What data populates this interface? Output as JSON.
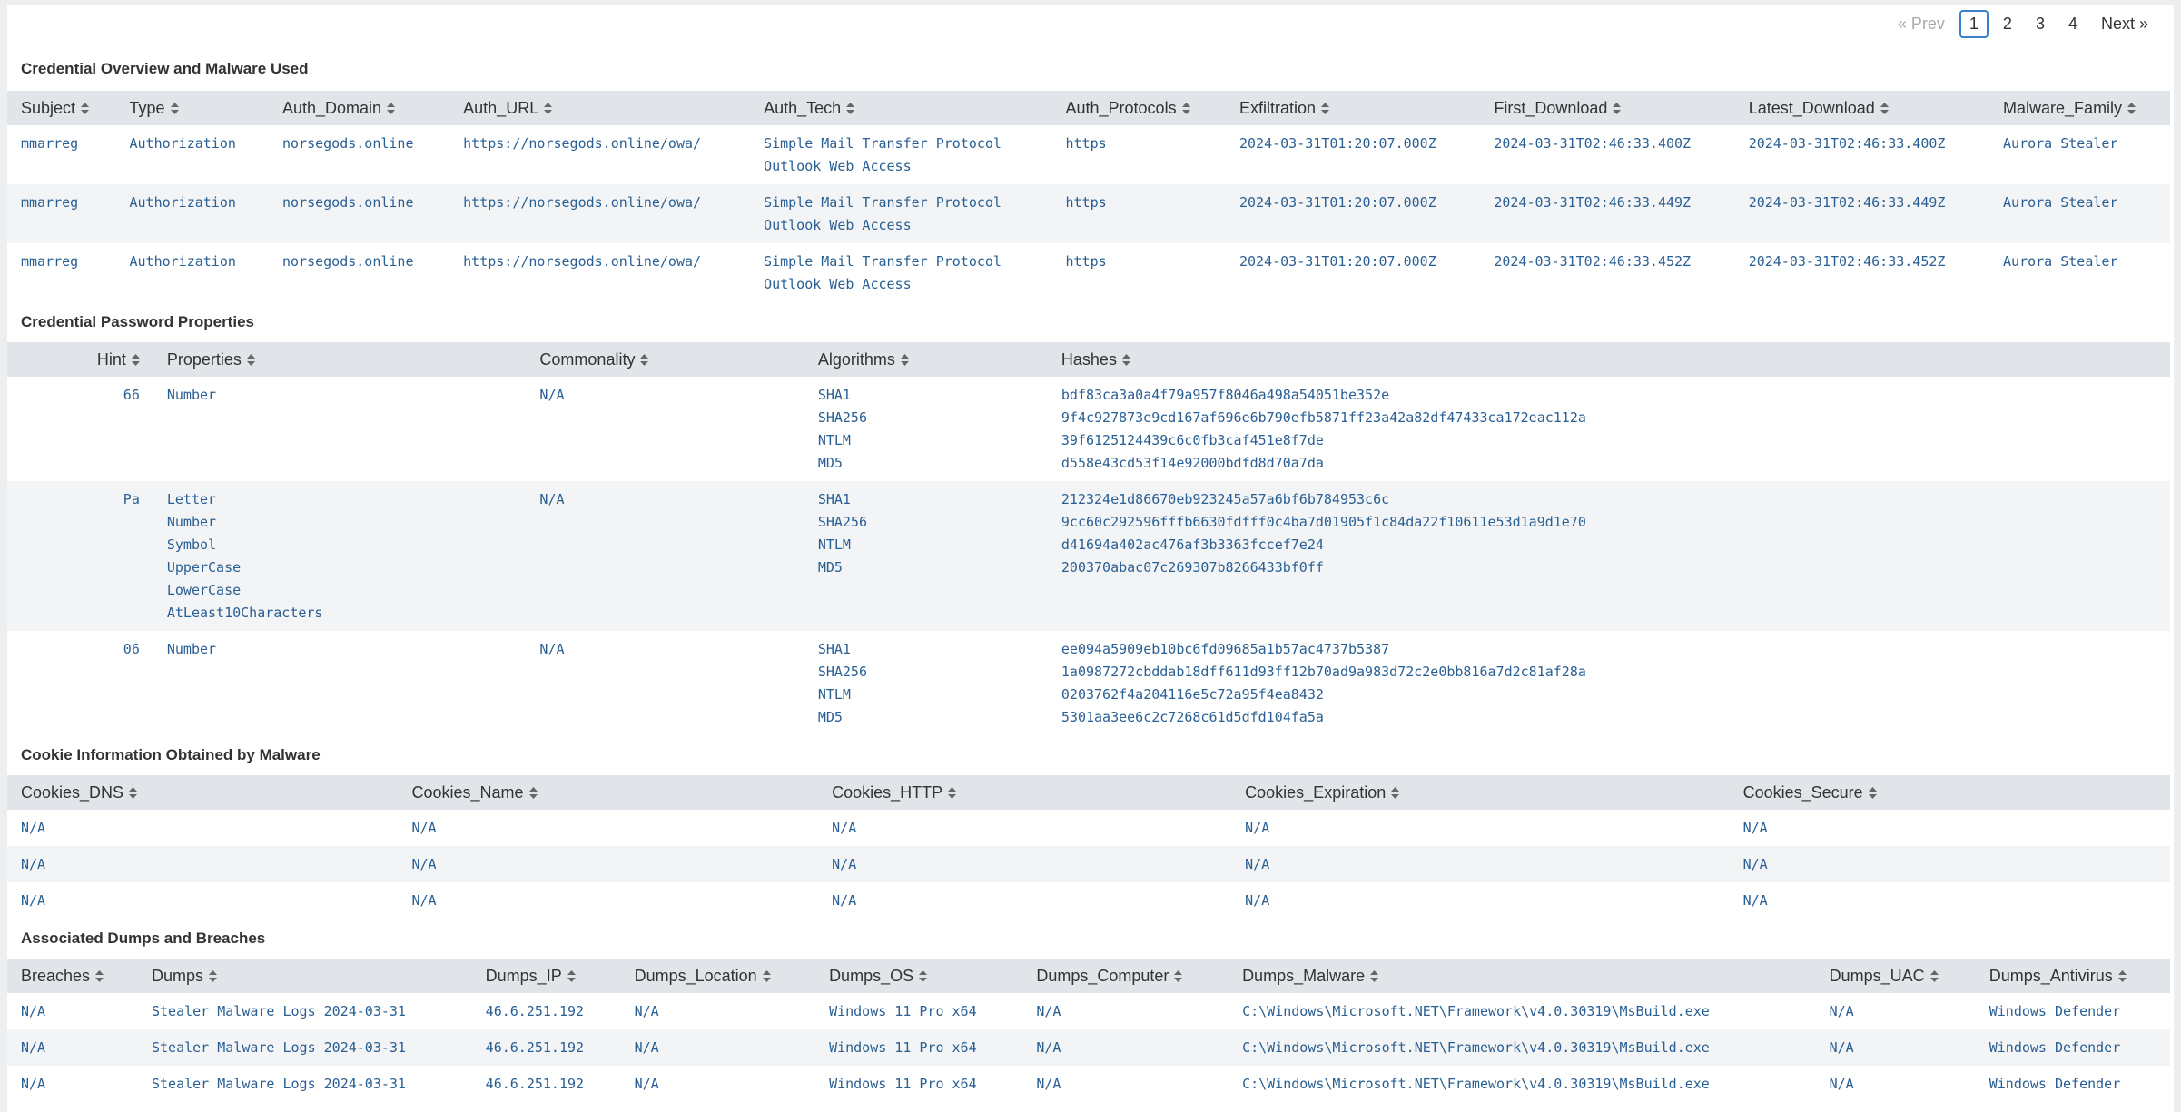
{
  "pagination": {
    "prev": "« Prev",
    "pages": [
      "1",
      "2",
      "3",
      "4"
    ],
    "current": "1",
    "next": "Next »"
  },
  "sections": [
    {
      "title": "Credential Overview and Malware Used",
      "columns": [
        "Subject",
        "Type",
        "Auth_Domain",
        "Auth_URL",
        "Auth_Tech",
        "Auth_Protocols",
        "Exfiltration",
        "First_Download",
        "Latest_Download",
        "Malware_Family"
      ],
      "rows": [
        [
          "mmarreg",
          "Authorization",
          "norsegods.online",
          "https://norsegods.online/owa/",
          [
            "Simple Mail Transfer Protocol",
            "Outlook Web Access"
          ],
          "https",
          "2024-03-31T01:20:07.000Z",
          "2024-03-31T02:46:33.400Z",
          "2024-03-31T02:46:33.400Z",
          "Aurora Stealer"
        ],
        [
          "mmarreg",
          "Authorization",
          "norsegods.online",
          "https://norsegods.online/owa/",
          [
            "Simple Mail Transfer Protocol",
            "Outlook Web Access"
          ],
          "https",
          "2024-03-31T01:20:07.000Z",
          "2024-03-31T02:46:33.449Z",
          "2024-03-31T02:46:33.449Z",
          "Aurora Stealer"
        ],
        [
          "mmarreg",
          "Authorization",
          "norsegods.online",
          "https://norsegods.online/owa/",
          [
            "Simple Mail Transfer Protocol",
            "Outlook Web Access"
          ],
          "https",
          "2024-03-31T01:20:07.000Z",
          "2024-03-31T02:46:33.452Z",
          "2024-03-31T02:46:33.452Z",
          "Aurora Stealer"
        ]
      ]
    },
    {
      "title": "Credential Password Properties",
      "columns": [
        "Hint",
        "Properties",
        "Commonality",
        "Algorithms",
        "Hashes"
      ],
      "rows": [
        [
          "66",
          [
            "Number"
          ],
          "N/A",
          [
            "SHA1",
            "SHA256",
            "NTLM",
            "MD5"
          ],
          [
            "bdf83ca3a0a4f79a957f8046a498a54051be352e",
            "9f4c927873e9cd167af696e6b790efb5871ff23a42a82df47433ca172eac112a",
            "39f6125124439c6c0fb3caf451e8f7de",
            "d558e43cd53f14e92000bdfd8d70a7da"
          ]
        ],
        [
          "Pa",
          [
            "Letter",
            "Number",
            "Symbol",
            "UpperCase",
            "LowerCase",
            "AtLeast10Characters"
          ],
          "N/A",
          [
            "SHA1",
            "SHA256",
            "NTLM",
            "MD5"
          ],
          [
            "212324e1d86670eb923245a57a6bf6b784953c6c",
            "9cc60c292596fffb6630fdfff0c4ba7d01905f1c84da22f10611e53d1a9d1e70",
            "d41694a402ac476af3b3363fccef7e24",
            "200370abac07c269307b8266433bf0ff"
          ]
        ],
        [
          "06",
          [
            "Number"
          ],
          "N/A",
          [
            "SHA1",
            "SHA256",
            "NTLM",
            "MD5"
          ],
          [
            "ee094a5909eb10bc6fd09685a1b57ac4737b5387",
            "1a0987272cbddab18dff611d93ff12b70ad9a983d72c2e0bb816a7d2c81af28a",
            "0203762f4a204116e5c72a95f4ea8432",
            "5301aa3ee6c2c7268c61d5dfd104fa5a"
          ]
        ]
      ]
    },
    {
      "title": "Cookie Information Obtained by Malware",
      "columns": [
        "Cookies_DNS",
        "Cookies_Name",
        "Cookies_HTTP",
        "Cookies_Expiration",
        "Cookies_Secure"
      ],
      "rows": [
        [
          "N/A",
          "N/A",
          "N/A",
          "N/A",
          "N/A"
        ],
        [
          "N/A",
          "N/A",
          "N/A",
          "N/A",
          "N/A"
        ],
        [
          "N/A",
          "N/A",
          "N/A",
          "N/A",
          "N/A"
        ]
      ]
    },
    {
      "title": "Associated Dumps and Breaches",
      "columns": [
        "Breaches",
        "Dumps",
        "Dumps_IP",
        "Dumps_Location",
        "Dumps_OS",
        "Dumps_Computer",
        "Dumps_Malware",
        "Dumps_UAC",
        "Dumps_Antivirus"
      ],
      "rows": [
        [
          "N/A",
          "Stealer Malware Logs 2024-03-31",
          "46.6.251.192",
          "N/A",
          "Windows 11 Pro x64",
          "N/A",
          "C:\\Windows\\Microsoft.NET\\Framework\\v4.0.30319\\MsBuild.exe",
          "N/A",
          "Windows Defender"
        ],
        [
          "N/A",
          "Stealer Malware Logs 2024-03-31",
          "46.6.251.192",
          "N/A",
          "Windows 11 Pro x64",
          "N/A",
          "C:\\Windows\\Microsoft.NET\\Framework\\v4.0.30319\\MsBuild.exe",
          "N/A",
          "Windows Defender"
        ],
        [
          "N/A",
          "Stealer Malware Logs 2024-03-31",
          "46.6.251.192",
          "N/A",
          "Windows 11 Pro x64",
          "N/A",
          "C:\\Windows\\Microsoft.NET\\Framework\\v4.0.30319\\MsBuild.exe",
          "N/A",
          "Windows Defender"
        ]
      ]
    }
  ]
}
